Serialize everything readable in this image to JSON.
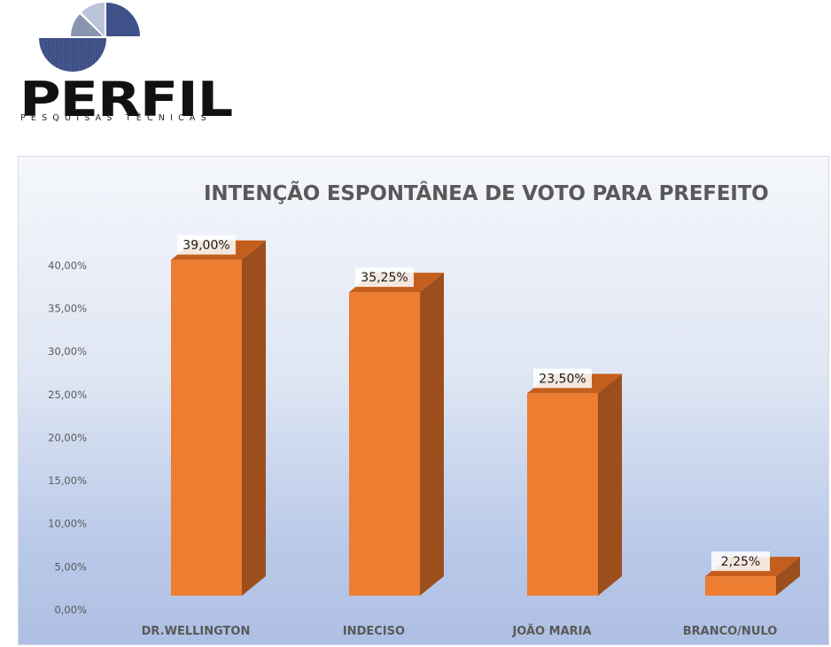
{
  "logo": {
    "name": "PERFIL",
    "tagline": "PESQUISAS TÉCNICAS"
  },
  "colors": {
    "bar_front": "#ed7d31",
    "bar_side": "#9c4f1c",
    "bar_top": "#c45e1d",
    "label_text": "#1a1a1a",
    "axis_text": "#595959",
    "title_text": "#595959",
    "logo_pie_dark": "#3c4f86",
    "logo_pie_light": "#b8c4d8"
  },
  "chart_data": {
    "type": "bar",
    "title": "INTENÇÃO ESPONTÂNEA DE VOTO PARA PREFEITO",
    "categories": [
      "DR.WELLINGTON",
      "INDECISO",
      "JOÃO MARIA",
      "BRANCO/NULO"
    ],
    "values": [
      39.0,
      35.25,
      23.5,
      2.25
    ],
    "data_labels": [
      "39,00%",
      "35,25%",
      "23,50%",
      "2,25%"
    ],
    "ylim": [
      0,
      40
    ],
    "yticks": [
      0,
      5,
      10,
      15,
      20,
      25,
      30,
      35,
      40
    ],
    "ytick_labels": [
      "0,00%",
      "5,00%",
      "10,00%",
      "15,00%",
      "20,00%",
      "25,00%",
      "30,00%",
      "35,00%",
      "40,00%"
    ],
    "style": "3d-column",
    "grid": false,
    "legend": "none"
  }
}
